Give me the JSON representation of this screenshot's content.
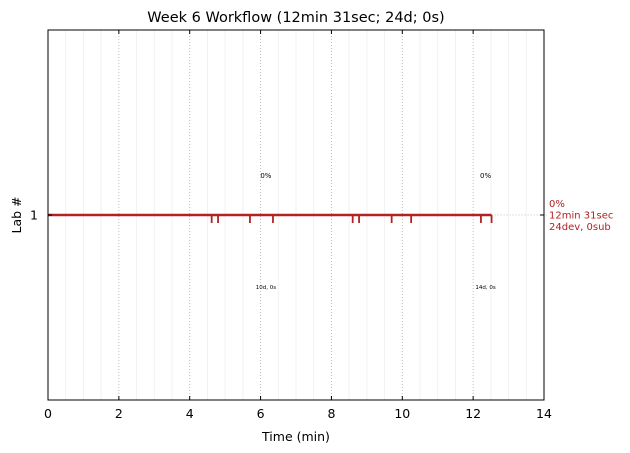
{
  "colors": {
    "series": "#b22222",
    "axis": "#000000",
    "major_grid": "#b0b0b0",
    "minor_grid": "#eeeeee"
  },
  "chart_data": {
    "type": "line",
    "title": "Week 6 Workflow (12min 31sec; 24d; 0s)",
    "xlabel": "Time (min)",
    "ylabel": "Lab #",
    "xlim": [
      0,
      14
    ],
    "ylim": [
      0,
      2
    ],
    "xticks": [
      0,
      2,
      4,
      6,
      8,
      10,
      12,
      14
    ],
    "xtick_labels": [
      "0",
      "2",
      "4",
      "6",
      "8",
      "10",
      "12",
      "14"
    ],
    "yticks": [
      1
    ],
    "ytick_labels": [
      "1"
    ],
    "grid": "on",
    "series": [
      {
        "lab": 1,
        "start": 0,
        "end": 12.52,
        "dev_events": [
          4.62,
          4.8,
          5.7,
          6.35,
          8.6,
          8.78,
          9.7,
          10.25,
          12.22,
          12.52
        ],
        "summary_lines": [
          "0%",
          "12min 31sec",
          "24dev, 0sub"
        ]
      }
    ],
    "annotations": [
      {
        "x": 6.15,
        "above": "0%",
        "below": "10d, 0s"
      },
      {
        "x": 12.35,
        "above": "0%",
        "below": "14d, 0s"
      }
    ]
  }
}
